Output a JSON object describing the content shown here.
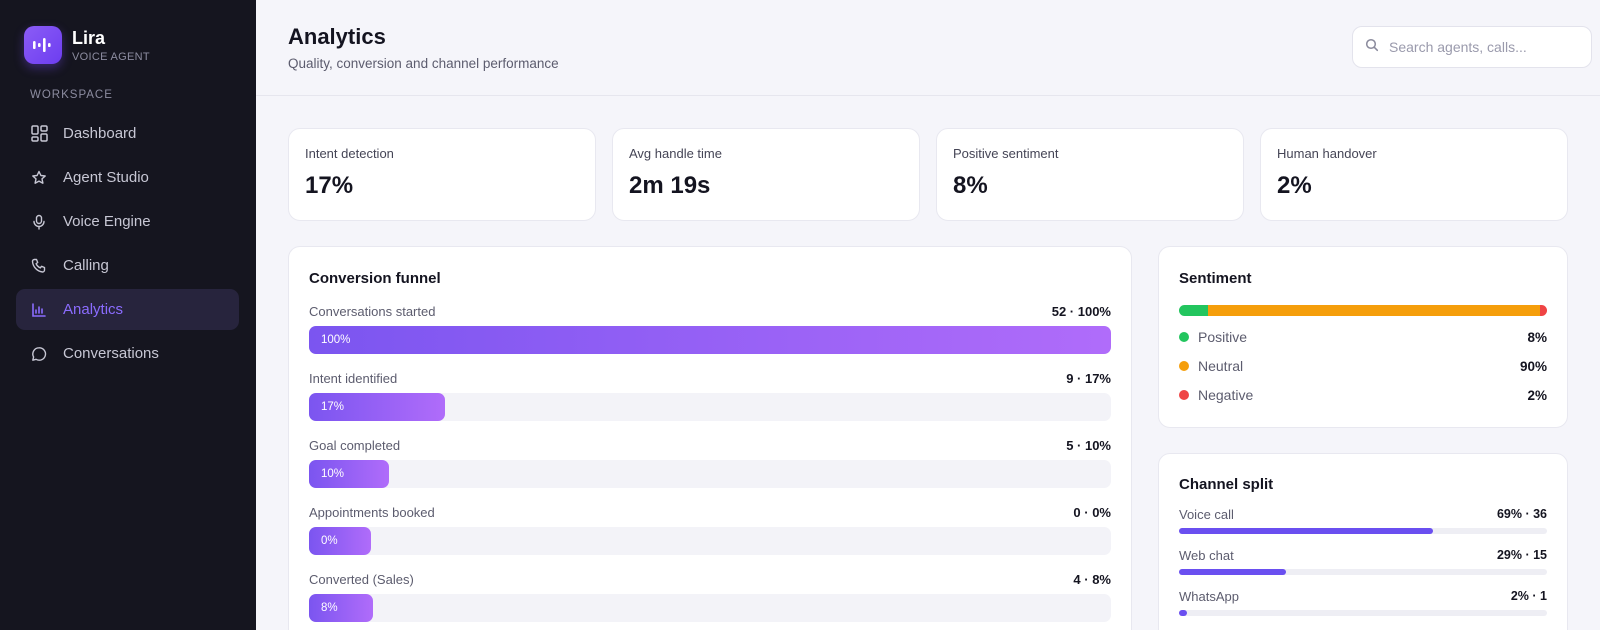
{
  "app": {
    "name": "Lira",
    "subtitle": "VOICE AGENT"
  },
  "sidebar": {
    "section_label": "WORKSPACE",
    "items": [
      {
        "label": "Dashboard",
        "icon": "grid-icon",
        "active": false
      },
      {
        "label": "Agent Studio",
        "icon": "star-icon",
        "active": false
      },
      {
        "label": "Voice Engine",
        "icon": "microphone-icon",
        "active": false
      },
      {
        "label": "Calling",
        "icon": "phone-icon",
        "active": false
      },
      {
        "label": "Analytics",
        "icon": "bar-chart-icon",
        "active": true
      },
      {
        "label": "Conversations",
        "icon": "chat-bubble-icon",
        "active": false
      }
    ]
  },
  "header": {
    "title": "Analytics",
    "subtitle": "Quality, conversion and channel performance",
    "search_placeholder": "Search agents, calls..."
  },
  "kpis": [
    {
      "label": "Intent detection",
      "value": "17%"
    },
    {
      "label": "Avg handle time",
      "value": "2m 19s"
    },
    {
      "label": "Positive sentiment",
      "value": "8%"
    },
    {
      "label": "Human handover",
      "value": "2%"
    }
  ],
  "funnel": {
    "title": "Conversion funnel",
    "rows": [
      {
        "label": "Conversations started",
        "value": "52 · 100%",
        "bar_label": "100%",
        "percent": 100
      },
      {
        "label": "Intent identified",
        "value": "9 · 17%",
        "bar_label": "17%",
        "percent": 17
      },
      {
        "label": "Goal completed",
        "value": "5 · 10%",
        "bar_label": "10%",
        "percent": 10
      },
      {
        "label": "Appointments booked",
        "value": "0 · 0%",
        "bar_label": "0%",
        "percent": 0
      },
      {
        "label": "Converted (Sales)",
        "value": "4 · 8%",
        "bar_label": "8%",
        "percent": 8
      }
    ]
  },
  "sentiment": {
    "title": "Sentiment",
    "items": [
      {
        "label": "Positive",
        "value": "8%",
        "percent": 8,
        "color": "#22c55e"
      },
      {
        "label": "Neutral",
        "value": "90%",
        "percent": 90,
        "color": "#f59e0b"
      },
      {
        "label": "Negative",
        "value": "2%",
        "percent": 2,
        "color": "#ef4444"
      }
    ]
  },
  "channels": {
    "title": "Channel split",
    "rows": [
      {
        "label": "Voice call",
        "value": "69% · 36",
        "percent": 69
      },
      {
        "label": "Web chat",
        "value": "29% · 15",
        "percent": 29
      },
      {
        "label": "WhatsApp",
        "value": "2% · 1",
        "percent": 2
      }
    ]
  },
  "colors": {
    "accent": "#7c5cff",
    "sidebar_bg": "#15151f",
    "page_bg": "#f5f5fa"
  }
}
